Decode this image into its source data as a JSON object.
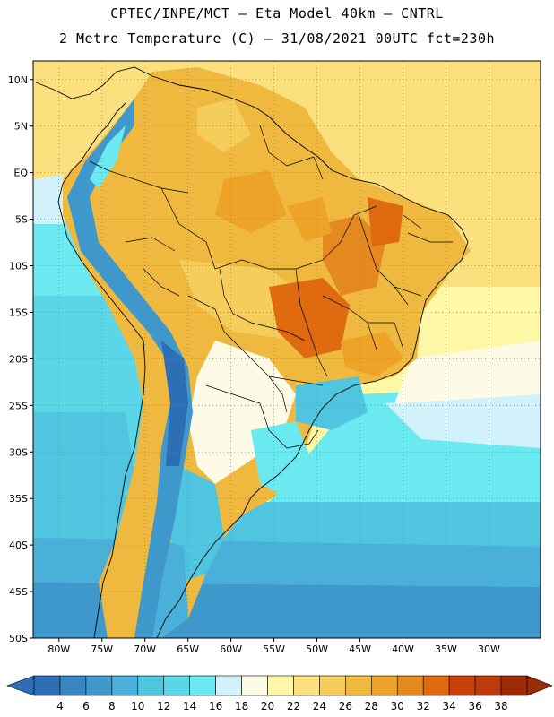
{
  "header": {
    "line1": "CPTEC/INPE/MCT –  Eta Model 40km – CNTRL",
    "line2": "2 Metre Temperature (C) – 31/08/2021 00UTC fct=230h"
  },
  "map": {
    "lat_labels": [
      "10N",
      "5N",
      "EQ",
      "5S",
      "10S",
      "15S",
      "20S",
      "25S",
      "30S",
      "35S",
      "40S",
      "45S",
      "50S"
    ],
    "lon_labels": [
      "80W",
      "75W",
      "70W",
      "65W",
      "60W",
      "55W",
      "50W",
      "45W",
      "40W",
      "35W",
      "30W"
    ],
    "lat_range": [
      12,
      -50
    ],
    "lon_range": [
      -83,
      -24
    ]
  },
  "colorbar": {
    "labels": [
      "4",
      "6",
      "8",
      "10",
      "12",
      "14",
      "16",
      "18",
      "20",
      "22",
      "24",
      "26",
      "28",
      "30",
      "32",
      "34",
      "36",
      "38"
    ],
    "colors": [
      "#2d6fb5",
      "#3a86c3",
      "#3f98cc",
      "#4ab0d9",
      "#4fc5e0",
      "#5ad6e7",
      "#6aeaf0",
      "#d2f2fb",
      "#fdfbe6",
      "#fef7a6",
      "#fbe07d",
      "#f5cd5a",
      "#efb93f",
      "#eda328",
      "#e48820",
      "#df6a10",
      "#c8410a",
      "#bc3a0c",
      "#9c2a05"
    ]
  },
  "icons": {
    "colorbar_left_arrow": "triangle-left-icon",
    "colorbar_right_arrow": "triangle-right-icon"
  }
}
